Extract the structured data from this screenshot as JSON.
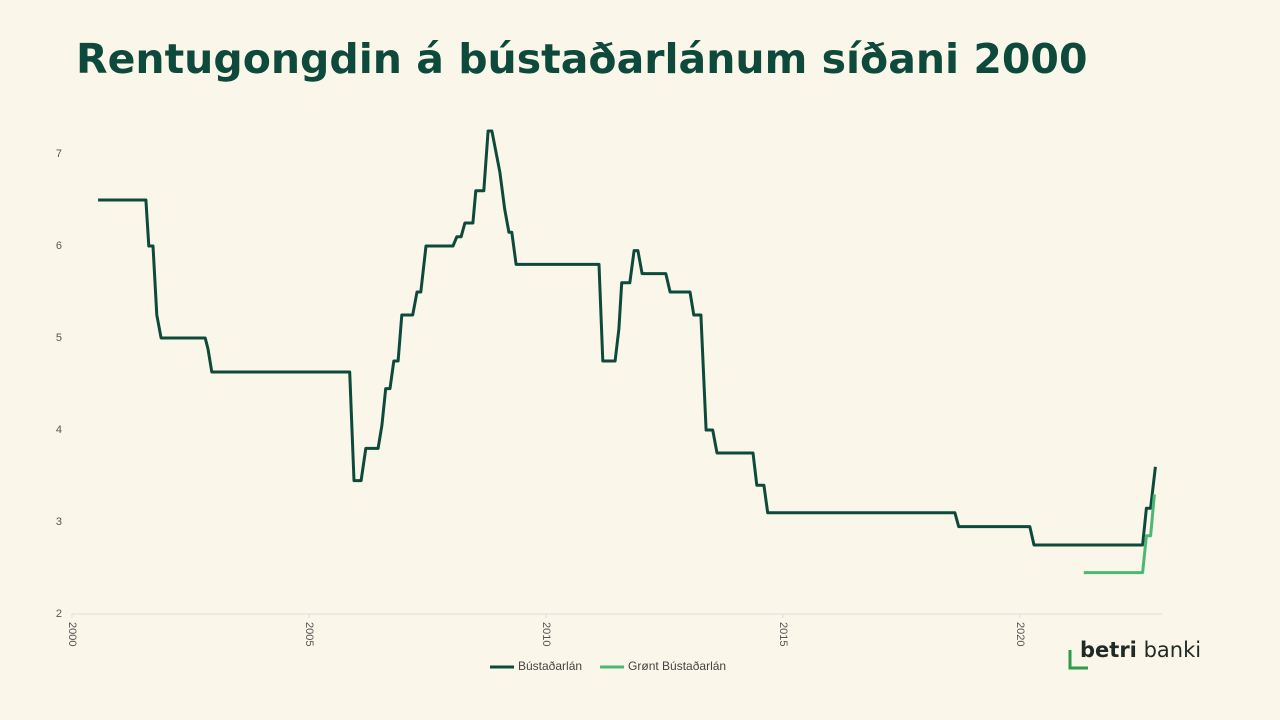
{
  "chart_data": {
    "type": "line",
    "title": "Rentugongdin á bústaðarlánum síðani 2000",
    "xlim": [
      2000,
      2023
    ],
    "xticks": [
      2000,
      2005,
      2010,
      2015,
      2020
    ],
    "ylim": [
      2,
      7.5
    ],
    "yticks": [
      2,
      3,
      4,
      5,
      6,
      7
    ],
    "grid": false,
    "legend": "bottom",
    "series": [
      {
        "name": "Bústaðarlán",
        "color": "#0d4a3c",
        "x": [
          2000.55,
          2001.56,
          2001.62,
          2001.71,
          2001.79,
          2001.88,
          2002.81,
          2002.87,
          2002.95,
          2005.86,
          2005.95,
          2006.1,
          2006.2,
          2006.46,
          2006.54,
          2006.62,
          2006.71,
          2006.79,
          2006.88,
          2006.96,
          2007.19,
          2007.28,
          2007.36,
          2007.47,
          2008.04,
          2008.12,
          2008.21,
          2008.29,
          2008.46,
          2008.52,
          2008.69,
          2008.78,
          2008.86,
          2009.03,
          2009.13,
          2009.22,
          2009.28,
          2009.37,
          2011.12,
          2011.2,
          2011.46,
          2011.54,
          2011.6,
          2011.77,
          2011.86,
          2011.94,
          2012.03,
          2012.53,
          2012.62,
          2013.04,
          2013.12,
          2013.27,
          2013.38,
          2013.52,
          2013.61,
          2014.37,
          2014.45,
          2014.6,
          2014.68,
          2018.63,
          2018.71,
          2020.21,
          2020.3,
          2022.59,
          2022.67,
          2022.76,
          2022.86
        ],
        "values": [
          6.5,
          6.5,
          6.0,
          6.0,
          5.25,
          5.0,
          5.0,
          4.88,
          4.63,
          4.63,
          3.45,
          3.45,
          3.8,
          3.8,
          4.05,
          4.45,
          4.45,
          4.75,
          4.75,
          5.25,
          5.25,
          5.5,
          5.5,
          6.0,
          6.0,
          6.1,
          6.1,
          6.25,
          6.25,
          6.6,
          6.6,
          7.25,
          7.25,
          6.8,
          6.4,
          6.15,
          6.15,
          5.8,
          5.8,
          4.75,
          4.75,
          5.1,
          5.6,
          5.6,
          5.95,
          5.95,
          5.7,
          5.7,
          5.5,
          5.5,
          5.25,
          5.25,
          4.0,
          4.0,
          3.75,
          3.75,
          3.4,
          3.4,
          3.1,
          3.1,
          2.95,
          2.95,
          2.75,
          2.75,
          3.15,
          3.15,
          3.6
        ]
      },
      {
        "name": "Grønt Bústaðarlán",
        "color": "#4cb874",
        "x": [
          2021.35,
          2022.59,
          2022.67,
          2022.76,
          2022.84
        ],
        "values": [
          2.45,
          2.45,
          2.85,
          2.85,
          3.3
        ]
      }
    ]
  },
  "brand": [
    "betri",
    "banki"
  ]
}
